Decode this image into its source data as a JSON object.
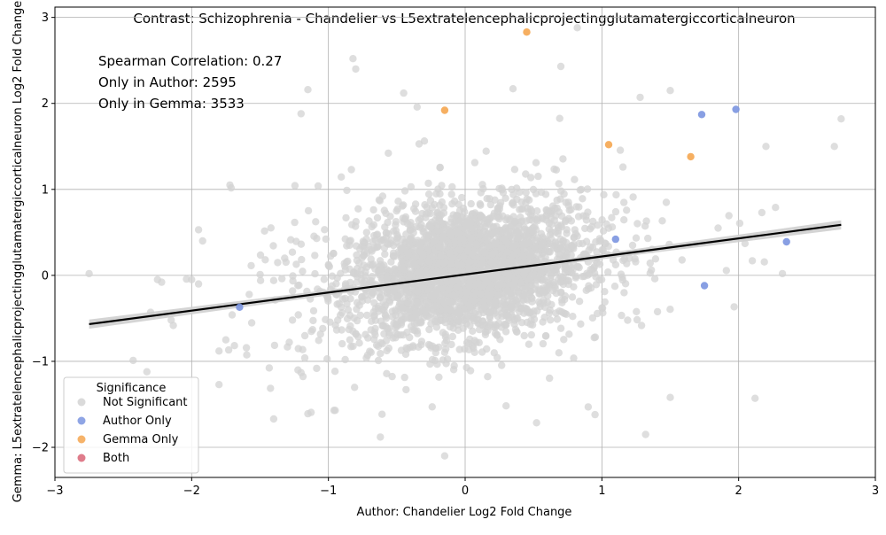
{
  "chart_data": {
    "type": "scatter",
    "title": "Contrast: Schizophrenia - Chandelier vs L5extratelencephalicprojectingglutamatergiccorticalneuron",
    "xlabel": "Author: Chandelier Log2 Fold Change",
    "ylabel": "Gemma: L5extratelencephalicprojectingglutamatergiccorticalneuron Log2 Fold Change",
    "xlim": [
      -3.0,
      3.0
    ],
    "ylim": [
      -2.35,
      3.12
    ],
    "x_ticks": [
      -3,
      -2,
      -1,
      0,
      1,
      2,
      3
    ],
    "x_tick_labels": [
      "−3",
      "−2",
      "−1",
      "0",
      "1",
      "2",
      "3"
    ],
    "y_ticks": [
      -2,
      -1,
      0,
      1,
      2,
      3
    ],
    "y_tick_labels": [
      "−2",
      "−1",
      "0",
      "1",
      "2",
      "3"
    ],
    "grid": true,
    "stats": [
      "Spearman Correlation: 0.27",
      "Only in Author: 2595",
      "Only in Gemma: 3533"
    ],
    "legend": {
      "title": "Significance",
      "placement": "lower-left",
      "entries": [
        {
          "label": "Not Significant",
          "color": "#d3d3d3"
        },
        {
          "label": "Author Only",
          "color": "#7b95e0"
        },
        {
          "label": "Gemma Only",
          "color": "#f5a650"
        },
        {
          "label": "Both",
          "color": "#d96577"
        }
      ]
    },
    "regression": {
      "slope": 0.21,
      "intercept": 0.01,
      "x_range": [
        -2.75,
        2.75
      ],
      "color": "#000000",
      "band_color": "#cfcfcf"
    },
    "series": [
      {
        "name": "Author Only",
        "color": "#7b95e0",
        "points": [
          [
            1.73,
            1.87
          ],
          [
            1.98,
            1.93
          ],
          [
            1.1,
            0.42
          ],
          [
            2.35,
            0.39
          ],
          [
            1.75,
            -0.12
          ],
          [
            -1.65,
            -0.37
          ]
        ]
      },
      {
        "name": "Gemma Only",
        "color": "#f5a650",
        "points": [
          [
            0.45,
            2.83
          ],
          [
            -0.15,
            1.92
          ],
          [
            1.05,
            1.52
          ],
          [
            1.65,
            1.38
          ]
        ]
      },
      {
        "name": "Both",
        "color": "#d96577",
        "points": []
      }
    ],
    "not_significant_outliers": [
      [
        -2.75,
        0.02
      ],
      [
        -2.3,
        -0.43
      ],
      [
        -2.25,
        -0.05
      ],
      [
        -2.22,
        -0.08
      ],
      [
        -2.15,
        -0.52
      ],
      [
        -2.0,
        -0.05
      ],
      [
        -1.95,
        -0.1
      ],
      [
        -1.95,
        0.53
      ],
      [
        -1.92,
        0.4
      ],
      [
        -1.8,
        -0.88
      ],
      [
        -1.8,
        -1.27
      ],
      [
        -1.75,
        -0.75
      ],
      [
        -1.72,
        1.05
      ],
      [
        -1.4,
        -1.67
      ],
      [
        -1.2,
        1.88
      ],
      [
        -1.15,
        2.16
      ],
      [
        -0.82,
        2.52
      ],
      [
        -0.8,
        2.4
      ],
      [
        0.82,
        2.88
      ],
      [
        0.7,
        2.43
      ],
      [
        -0.15,
        -2.1
      ],
      [
        -0.62,
        -1.88
      ],
      [
        -0.95,
        -1.57
      ],
      [
        2.75,
        1.82
      ],
      [
        2.7,
        1.5
      ],
      [
        2.2,
        1.5
      ],
      [
        2.12,
        -1.43
      ],
      [
        2.32,
        0.02
      ],
      [
        1.32,
        -1.85
      ],
      [
        1.5,
        -1.42
      ],
      [
        0.95,
        -1.62
      ],
      [
        1.28,
        2.07
      ],
      [
        1.5,
        2.15
      ],
      [
        0.35,
        2.17
      ],
      [
        0.9,
        -1.53
      ],
      [
        -0.45,
        2.12
      ],
      [
        2.17,
        0.73
      ],
      [
        2.27,
        0.79
      ],
      [
        1.85,
        0.55
      ],
      [
        2.1,
        0.17
      ]
    ]
  }
}
